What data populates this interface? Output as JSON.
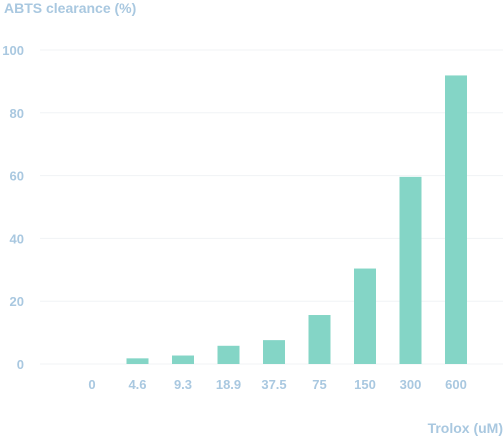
{
  "chart_data": {
    "type": "bar",
    "ylabel": "ABTS clearance (%)",
    "xlabel": "Trolox (uM)",
    "categories": [
      "0",
      "4.6",
      "9.3",
      "18.9",
      "37.5",
      "75",
      "150",
      "300",
      "600"
    ],
    "values": [
      0,
      1.8,
      2.7,
      5.8,
      7.6,
      15.6,
      30.4,
      59.6,
      91.9
    ],
    "ylim": [
      0,
      100
    ],
    "yticks": [
      "0",
      "20",
      "40",
      "60",
      "80",
      "100"
    ],
    "grid": true,
    "bar_color": "#84d5c6",
    "gridline_color": "#f0f3f5",
    "text_color": "#a9c8e0"
  }
}
